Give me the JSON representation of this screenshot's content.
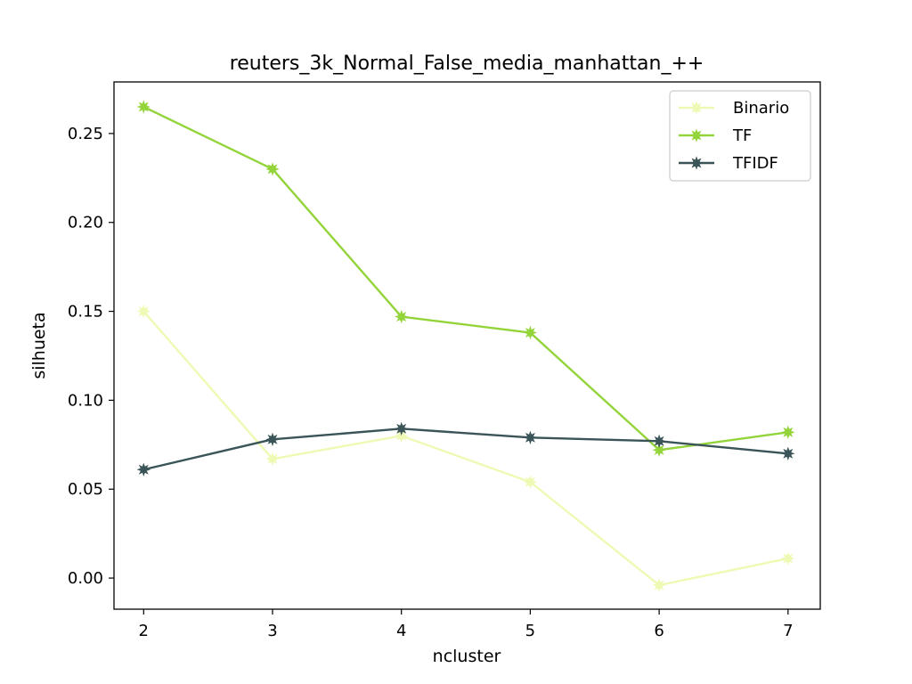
{
  "chart_data": {
    "type": "line",
    "title": "reuters_3k_Normal_False_media_manhattan_++",
    "xlabel": "ncluster",
    "ylabel": "silhueta",
    "x": [
      2,
      3,
      4,
      5,
      6,
      7
    ],
    "xlim": [
      1.77,
      7.25
    ],
    "ylim": [
      -0.0175,
      0.279
    ],
    "xticks": [
      2,
      3,
      4,
      5,
      6,
      7
    ],
    "xtick_labels": [
      "2",
      "3",
      "4",
      "5",
      "6",
      "7"
    ],
    "yticks": [
      0.0,
      0.05,
      0.1,
      0.15,
      0.2,
      0.25
    ],
    "ytick_labels": [
      "0.00",
      "0.05",
      "0.10",
      "0.15",
      "0.20",
      "0.25"
    ],
    "grid": false,
    "legend_position": "top-right",
    "series": [
      {
        "name": "Binario",
        "color": "#eefab4",
        "values": [
          0.15,
          0.067,
          0.08,
          0.054,
          -0.004,
          0.011
        ]
      },
      {
        "name": "TF",
        "color": "#93d43a",
        "values": [
          0.265,
          0.23,
          0.147,
          0.138,
          0.072,
          0.082
        ]
      },
      {
        "name": "TFIDF",
        "color": "#3a5458",
        "values": [
          0.061,
          0.078,
          0.084,
          0.079,
          0.077,
          0.07
        ]
      }
    ]
  }
}
